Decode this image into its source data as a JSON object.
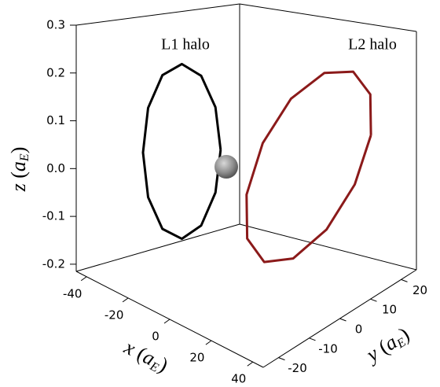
{
  "chart_data": {
    "type": "line3d",
    "xlabel": [
      "x",
      " (",
      "a",
      "E",
      ")"
    ],
    "ylabel": [
      "y",
      " (",
      "a",
      "E",
      ")"
    ],
    "zlabel": [
      "z",
      " (",
      "a",
      "E",
      ")"
    ],
    "xlim": [
      -45,
      45
    ],
    "ylim": [
      -25,
      25
    ],
    "zlim": [
      -0.215,
      0.3
    ],
    "xticks": [
      -40,
      -20,
      0,
      20,
      40
    ],
    "yticks": [
      -20,
      -10,
      0,
      10,
      20
    ],
    "zticks": [
      -0.2,
      -0.1,
      {
        "value": 0,
        "label": "0.0"
      },
      0.1,
      0.2,
      0.3
    ],
    "series": [
      {
        "name": "L1 halo",
        "color": "#000000",
        "x": [
          -30,
          -30,
          -30,
          -30,
          -30,
          -30,
          -30,
          -30,
          -30,
          -30,
          -30,
          -30,
          -30
        ],
        "y": [
          10,
          8.4,
          4,
          -2,
          -8,
          -12.4,
          -14,
          -12.4,
          -8,
          -2,
          4,
          8.4,
          10
        ],
        "z": [
          0.005,
          0.103,
          0.18,
          0.215,
          0.2,
          0.137,
          0.045,
          -0.053,
          -0.13,
          -0.165,
          -0.15,
          -0.087,
          0.005
        ]
      },
      {
        "name": "L2 halo",
        "color": "#8b1a1a",
        "x": [
          25,
          25,
          25,
          25,
          25,
          25,
          25,
          25,
          25,
          25,
          25,
          25,
          25
        ],
        "y": [
          23,
          22.8,
          17.3,
          8,
          -2.7,
          -11.8,
          -17,
          -16.8,
          -11.3,
          -2,
          8.7,
          17.8,
          23
        ],
        "z": [
          0.065,
          0.155,
          0.221,
          0.245,
          0.221,
          0.155,
          0.065,
          -0.025,
          -0.091,
          -0.115,
          -0.091,
          -0.025,
          0.065
        ]
      }
    ]
  }
}
